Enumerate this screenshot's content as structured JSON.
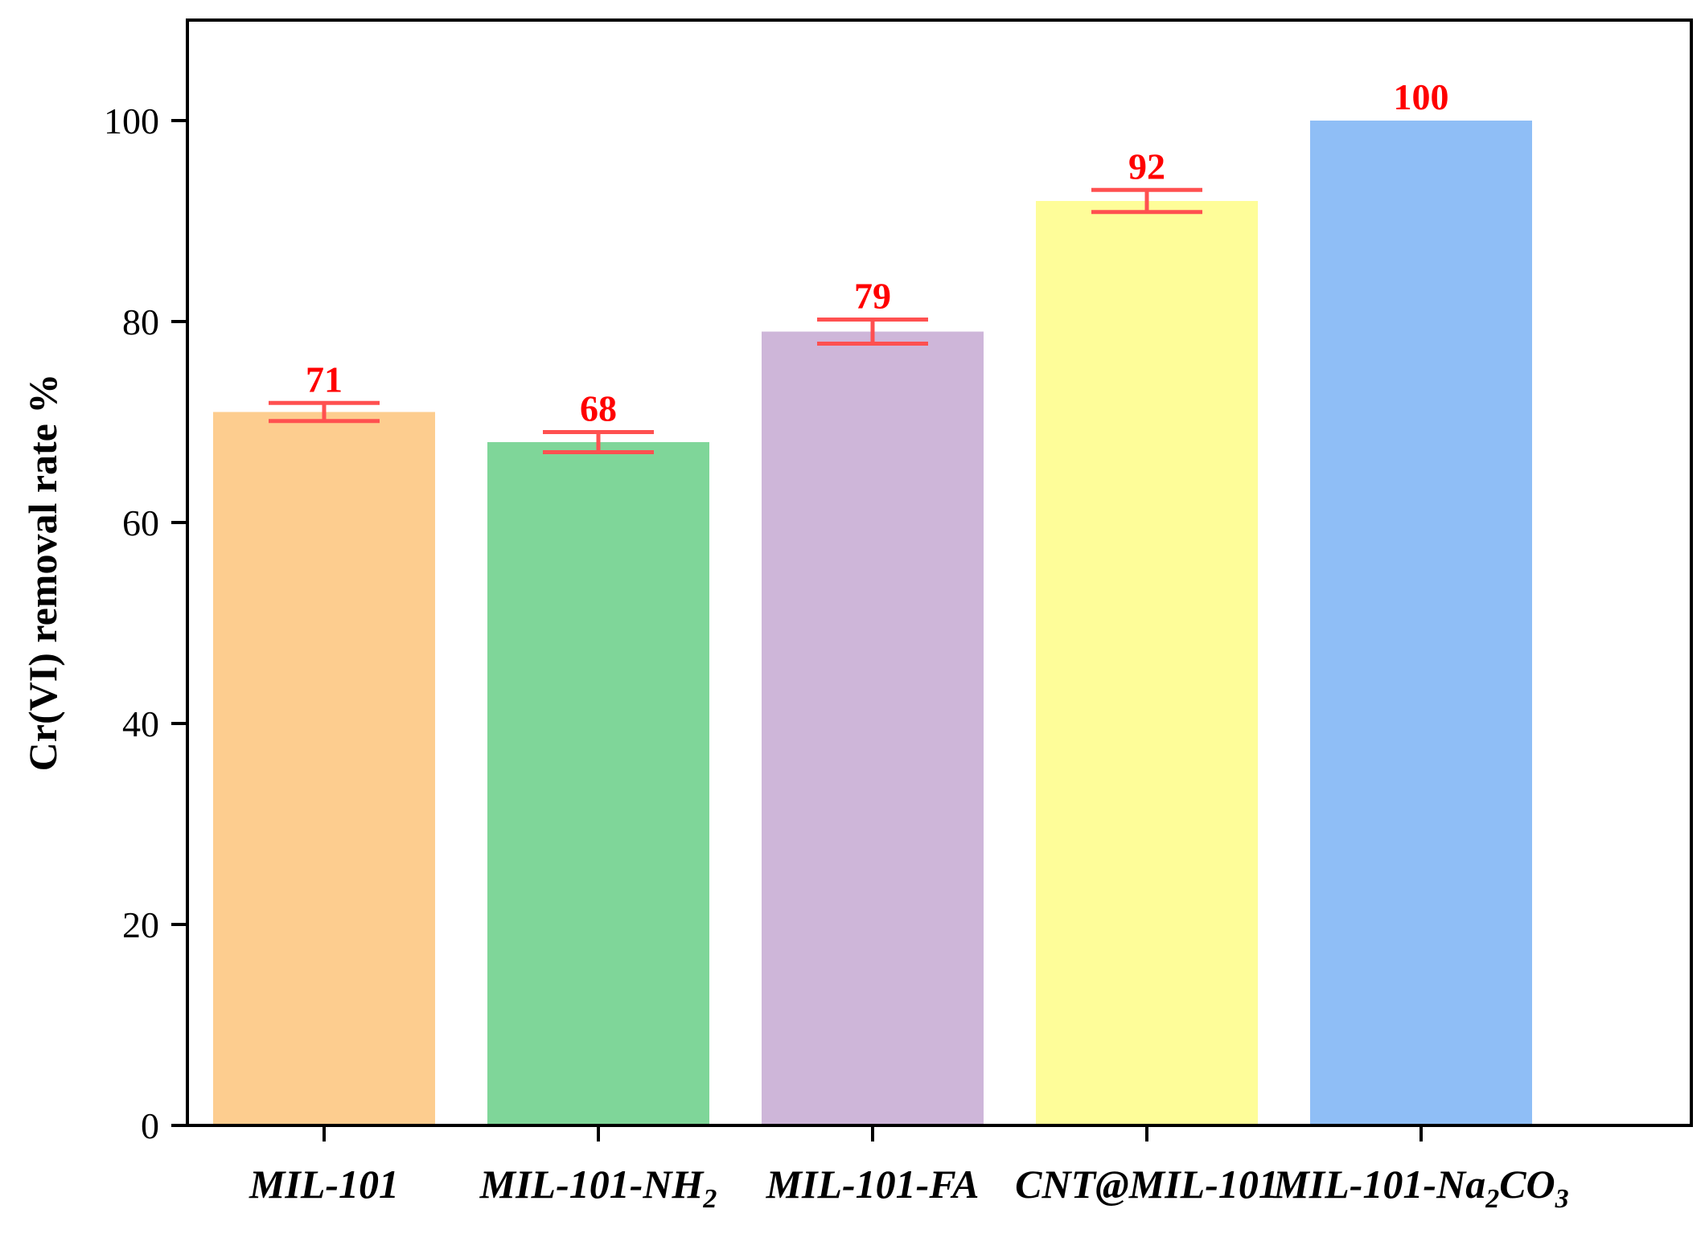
{
  "chart_data": {
    "type": "bar",
    "title": "",
    "xlabel": "",
    "ylabel": "Cr(VI) removal rate %",
    "ylim": [
      0,
      110
    ],
    "yticks": [
      0,
      20,
      40,
      60,
      80,
      100
    ],
    "categories": [
      {
        "label": "MIL-101",
        "sub": "",
        "suffix": ""
      },
      {
        "label": "MIL-101-NH",
        "sub": "2",
        "suffix": ""
      },
      {
        "label": "MIL-101-FA",
        "sub": "",
        "suffix": ""
      },
      {
        "label": "CNT@MIL-101",
        "sub": "",
        "suffix": ""
      },
      {
        "label": "MIL-101-Na",
        "sub": "2",
        "suffix": "CO",
        "sub2": "3"
      }
    ],
    "values": [
      71,
      68,
      79,
      92,
      100
    ],
    "data_labels": [
      "71",
      "68",
      "79",
      "92",
      "100"
    ],
    "errors": [
      0.9,
      1.0,
      1.2,
      1.1,
      0
    ],
    "colors": [
      "#fdcd8f",
      "#7fd699",
      "#ceb6d9",
      "#fefd99",
      "#8fbef6"
    ],
    "error_color": "#ff5050",
    "label_color": "#ff0000",
    "grid": false,
    "legend": "none"
  }
}
